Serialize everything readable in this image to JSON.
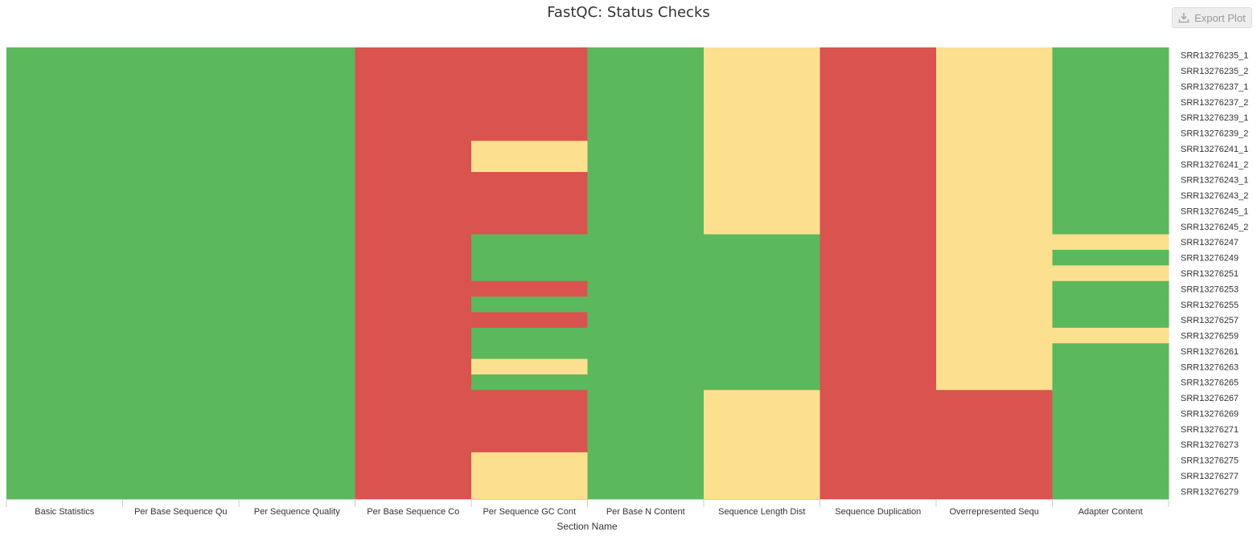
{
  "chart_data": {
    "type": "heatmap",
    "title": "FastQC: Status Checks",
    "xlabel": "Section Name",
    "ylabel": "",
    "status_colors": {
      "pass": "#5cb85c",
      "warn": "#fce08f",
      "fail": "#d9534f"
    },
    "x_categories": [
      "Basic Statistics",
      "Per Base Sequence Qu",
      "Per Sequence Quality",
      "Per Base Sequence Co",
      "Per Sequence GC Cont",
      "Per Base N Content",
      "Sequence Length Dist",
      "Sequence Duplication",
      "Overrepresented Sequ",
      "Adapter Content"
    ],
    "y_categories": [
      "SRR13276235_1",
      "SRR13276235_2",
      "SRR13276237_1",
      "SRR13276237_2",
      "SRR13276239_1",
      "SRR13276239_2",
      "SRR13276241_1",
      "SRR13276241_2",
      "SRR13276243_1",
      "SRR13276243_2",
      "SRR13276245_1",
      "SRR13276245_2",
      "SRR13276247",
      "SRR13276249",
      "SRR13276251",
      "SRR13276253",
      "SRR13276255",
      "SRR13276257",
      "SRR13276259",
      "SRR13276261",
      "SRR13276263",
      "SRR13276265",
      "SRR13276267",
      "SRR13276269",
      "SRR13276271",
      "SRR13276273",
      "SRR13276275",
      "SRR13276277",
      "SRR13276279"
    ],
    "values": {
      "Basic Statistics": [
        "pass",
        "pass",
        "pass",
        "pass",
        "pass",
        "pass",
        "pass",
        "pass",
        "pass",
        "pass",
        "pass",
        "pass",
        "pass",
        "pass",
        "pass",
        "pass",
        "pass",
        "pass",
        "pass",
        "pass",
        "pass",
        "pass",
        "pass",
        "pass",
        "pass",
        "pass",
        "pass",
        "pass",
        "pass"
      ],
      "Per Base Sequence Qu": [
        "pass",
        "pass",
        "pass",
        "pass",
        "pass",
        "pass",
        "pass",
        "pass",
        "pass",
        "pass",
        "pass",
        "pass",
        "pass",
        "pass",
        "pass",
        "pass",
        "pass",
        "pass",
        "pass",
        "pass",
        "pass",
        "pass",
        "pass",
        "pass",
        "pass",
        "pass",
        "pass",
        "pass",
        "pass"
      ],
      "Per Sequence Quality": [
        "pass",
        "pass",
        "pass",
        "pass",
        "pass",
        "pass",
        "pass",
        "pass",
        "pass",
        "pass",
        "pass",
        "pass",
        "pass",
        "pass",
        "pass",
        "pass",
        "pass",
        "pass",
        "pass",
        "pass",
        "pass",
        "pass",
        "pass",
        "pass",
        "pass",
        "pass",
        "pass",
        "pass",
        "pass"
      ],
      "Per Base Sequence Co": [
        "fail",
        "fail",
        "fail",
        "fail",
        "fail",
        "fail",
        "fail",
        "fail",
        "fail",
        "fail",
        "fail",
        "fail",
        "fail",
        "fail",
        "fail",
        "fail",
        "fail",
        "fail",
        "fail",
        "fail",
        "fail",
        "fail",
        "fail",
        "fail",
        "fail",
        "fail",
        "fail",
        "fail",
        "fail"
      ],
      "Per Sequence GC Cont": [
        "fail",
        "fail",
        "fail",
        "fail",
        "fail",
        "fail",
        "warn",
        "warn",
        "fail",
        "fail",
        "fail",
        "fail",
        "pass",
        "pass",
        "pass",
        "fail",
        "pass",
        "fail",
        "pass",
        "pass",
        "warn",
        "pass",
        "fail",
        "fail",
        "fail",
        "fail",
        "warn",
        "warn",
        "warn"
      ],
      "Per Base N Content": [
        "pass",
        "pass",
        "pass",
        "pass",
        "pass",
        "pass",
        "pass",
        "pass",
        "pass",
        "pass",
        "pass",
        "pass",
        "pass",
        "pass",
        "pass",
        "pass",
        "pass",
        "pass",
        "pass",
        "pass",
        "pass",
        "pass",
        "pass",
        "pass",
        "pass",
        "pass",
        "pass",
        "pass",
        "pass"
      ],
      "Sequence Length Dist": [
        "warn",
        "warn",
        "warn",
        "warn",
        "warn",
        "warn",
        "warn",
        "warn",
        "warn",
        "warn",
        "warn",
        "warn",
        "pass",
        "pass",
        "pass",
        "pass",
        "pass",
        "pass",
        "pass",
        "pass",
        "pass",
        "pass",
        "warn",
        "warn",
        "warn",
        "warn",
        "warn",
        "warn",
        "warn"
      ],
      "Sequence Duplication": [
        "fail",
        "fail",
        "fail",
        "fail",
        "fail",
        "fail",
        "fail",
        "fail",
        "fail",
        "fail",
        "fail",
        "fail",
        "fail",
        "fail",
        "fail",
        "fail",
        "fail",
        "fail",
        "fail",
        "fail",
        "fail",
        "fail",
        "fail",
        "fail",
        "fail",
        "fail",
        "fail",
        "fail",
        "fail"
      ],
      "Overrepresented Sequ": [
        "warn",
        "warn",
        "warn",
        "warn",
        "warn",
        "warn",
        "warn",
        "warn",
        "warn",
        "warn",
        "warn",
        "warn",
        "warn",
        "warn",
        "warn",
        "warn",
        "warn",
        "warn",
        "warn",
        "warn",
        "warn",
        "warn",
        "fail",
        "fail",
        "fail",
        "fail",
        "fail",
        "fail",
        "fail"
      ],
      "Adapter Content": [
        "pass",
        "pass",
        "pass",
        "pass",
        "pass",
        "pass",
        "pass",
        "pass",
        "pass",
        "pass",
        "pass",
        "pass",
        "warn",
        "pass",
        "warn",
        "pass",
        "pass",
        "pass",
        "warn",
        "pass",
        "pass",
        "pass",
        "pass",
        "pass",
        "pass",
        "pass",
        "pass",
        "pass",
        "pass"
      ]
    },
    "legend": "none",
    "grid": false
  },
  "toolbar": {
    "export_label": "Export Plot",
    "export_icon": "download-icon"
  }
}
